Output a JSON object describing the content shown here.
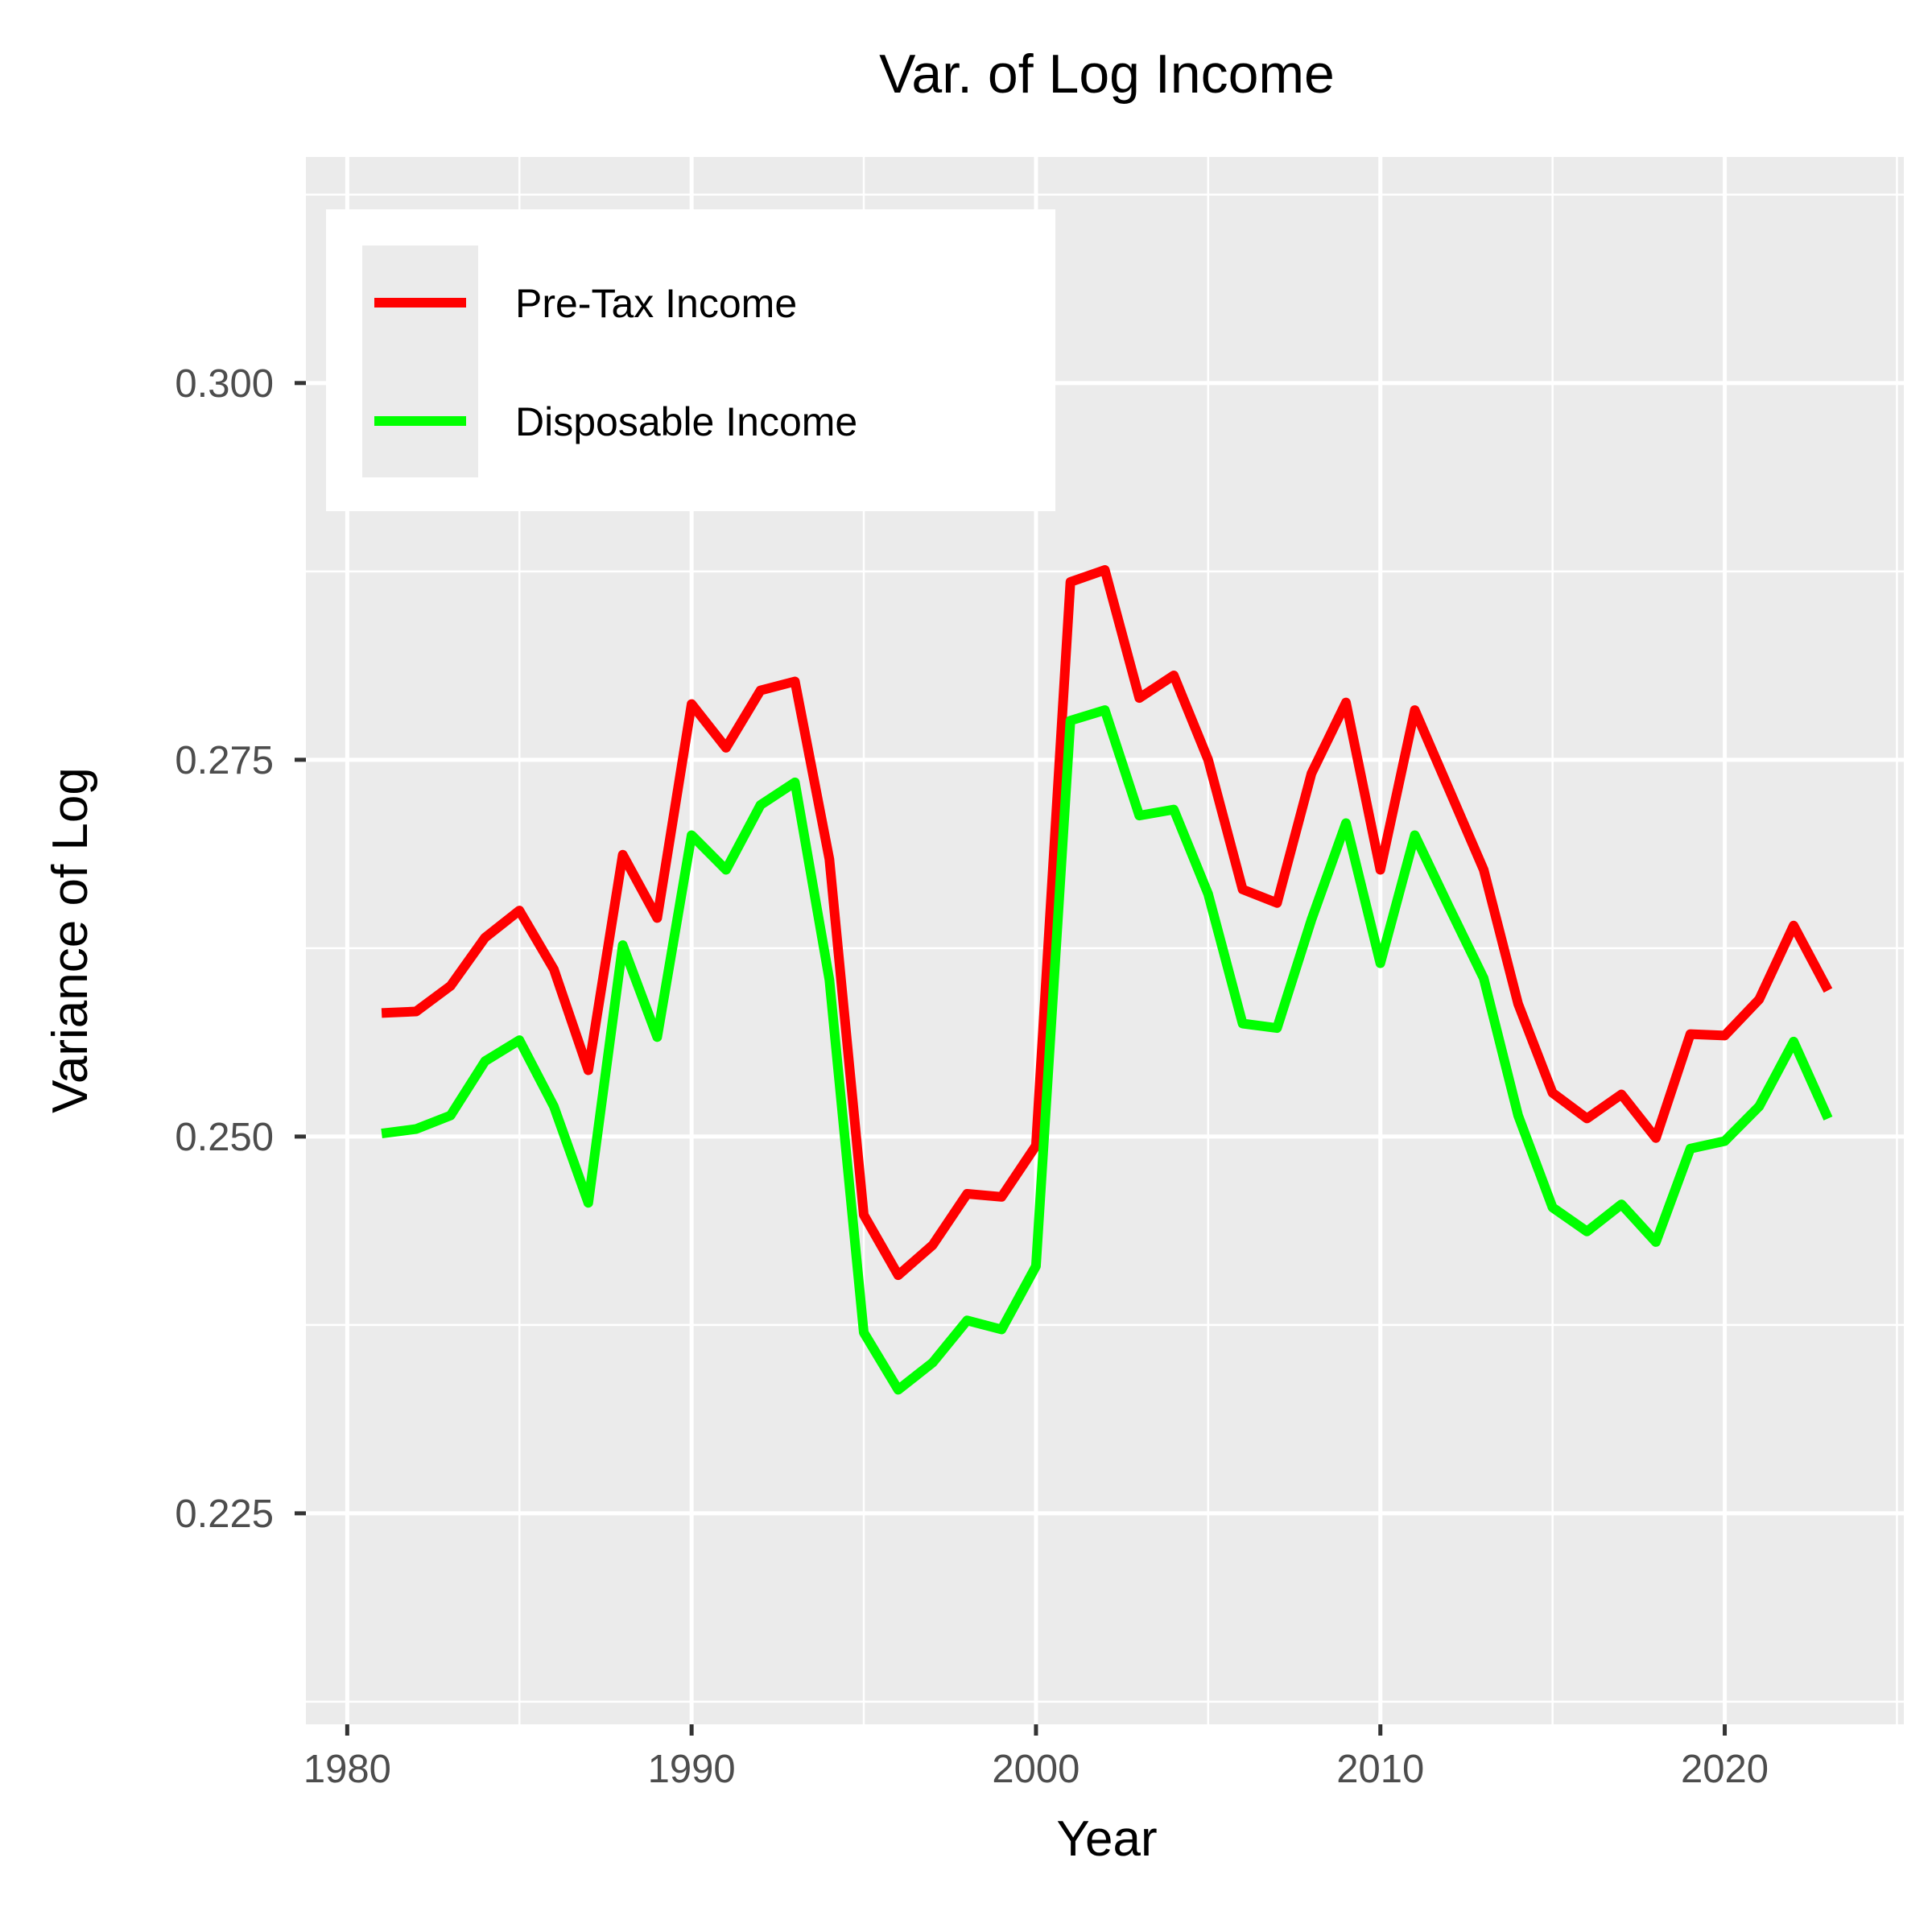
{
  "chart_data": {
    "type": "line",
    "title": "Var. of Log Income",
    "xlabel": "Year",
    "ylabel": "Variance of Log",
    "xlim": [
      1978.8,
      2025.2
    ],
    "ylim": [
      0.211,
      0.315
    ],
    "x_ticks": [
      1980,
      1990,
      2000,
      2010,
      2020
    ],
    "x_tick_labels": [
      "1980",
      "1990",
      "2000",
      "2010",
      "2020"
    ],
    "y_ticks": [
      0.225,
      0.25,
      0.275,
      0.3
    ],
    "y_tick_labels": [
      "0.225",
      "0.250",
      "0.275",
      "0.300"
    ],
    "grid": true,
    "legend_position": "top-left",
    "background_color": "#ebebeb",
    "grid_color": "#ffffff",
    "x": [
      1981,
      1982,
      1983,
      1984,
      1985,
      1986,
      1987,
      1988,
      1989,
      1990,
      1991,
      1992,
      1993,
      1994,
      1995,
      1996,
      1997,
      1998,
      1999,
      2000,
      2001,
      2002,
      2003,
      2004,
      2005,
      2006,
      2007,
      2008,
      2009,
      2010,
      2011,
      2012,
      2013,
      2014,
      2015,
      2016,
      2017,
      2018,
      2019,
      2020,
      2021,
      2022,
      2023
    ],
    "series": [
      {
        "name": "Pre-Tax Income",
        "color": "#ff0000",
        "values": [
          0.2582,
          0.2583,
          0.26,
          0.2632,
          0.265,
          0.2611,
          0.2544,
          0.2687,
          0.2645,
          0.2787,
          0.2758,
          0.2796,
          0.2802,
          0.2684,
          0.2448,
          0.2408,
          0.2428,
          0.2462,
          0.246,
          0.2494,
          0.2868,
          0.2876,
          0.2791,
          0.2806,
          0.275,
          0.2664,
          0.2655,
          0.2741,
          0.2788,
          0.2677,
          0.2783,
          0.273,
          0.2677,
          0.2588,
          0.2529,
          0.2512,
          0.2528,
          0.2499,
          0.2568,
          0.2567,
          0.2591,
          0.264,
          0.2597
        ]
      },
      {
        "name": "Disposable Income",
        "color": "#00ff00",
        "values": [
          0.2502,
          0.2505,
          0.2514,
          0.255,
          0.2564,
          0.252,
          0.2456,
          0.2627,
          0.2566,
          0.27,
          0.2677,
          0.272,
          0.2735,
          0.2604,
          0.237,
          0.2332,
          0.235,
          0.2378,
          0.2372,
          0.2414,
          0.2776,
          0.2783,
          0.2713,
          0.2717,
          0.2661,
          0.2575,
          0.2572,
          0.2644,
          0.2708,
          0.2615,
          0.27,
          0.2652,
          0.2605,
          0.2514,
          0.2453,
          0.2437,
          0.2455,
          0.243,
          0.2492,
          0.2497,
          0.252,
          0.2563,
          0.2512
        ]
      }
    ]
  }
}
